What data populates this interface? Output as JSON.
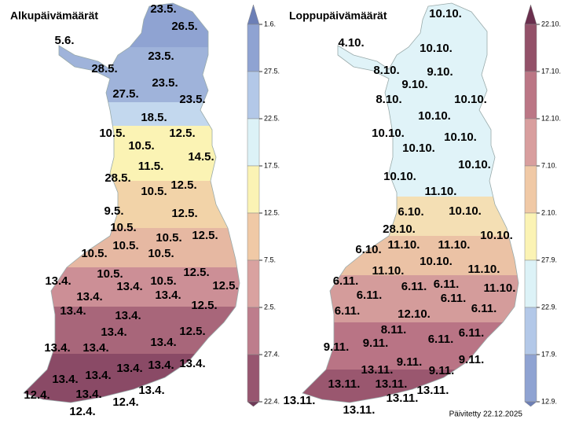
{
  "left_map": {
    "title": "Alkupäivämäärät",
    "labels": [
      "23.5.",
      "26.5.",
      "5.6.",
      "28.5.",
      "23.5.",
      "23.5.",
      "27.5.",
      "23.5.",
      "18.5.",
      "10.5.",
      "12.5.",
      "10.5.",
      "14.5.",
      "11.5.",
      "28.5.",
      "12.5.",
      "10.5.",
      "9.5.",
      "12.5.",
      "10.5.",
      "12.5.",
      "10.5.",
      "10.5.",
      "10.5.",
      "10.5.",
      "12.5.",
      "12.5.",
      "10.5.",
      "13.4.",
      "10.5.",
      "13.4.",
      "13.4.",
      "13.4.",
      "13.4.",
      "12.5.",
      "13.4.",
      "13.4.",
      "12.5.",
      "13.4.",
      "13.4.",
      "13.4.",
      "13.4.",
      "13.4.",
      "13.4.",
      "13.4.",
      "13.4.",
      "12.4.",
      "13.4.",
      "12.4.",
      "13.4.",
      "12.4."
    ],
    "legend": [
      "1.6.",
      "27.5.",
      "22.5.",
      "17.5.",
      "12.5.",
      "7.5.",
      "2.5.",
      "27.4.",
      "22.4."
    ]
  },
  "right_map": {
    "title": "Loppupäivämäärät",
    "labels": [
      "10.10.",
      "4.10.",
      "10.10.",
      "8.10.",
      "9.10.",
      "9.10.",
      "8.10.",
      "10.10.",
      "10.10.",
      "10.10.",
      "10.10.",
      "10.10.",
      "10.10.",
      "10.10.",
      "11.10.",
      "6.10.",
      "10.10.",
      "28.10.",
      "10.10.",
      "6.10.",
      "11.10.",
      "11.10.",
      "10.10.",
      "11.10.",
      "11.10.",
      "6.11.",
      "6.11.",
      "6.11.",
      "11.10.",
      "6.11.",
      "6.11.",
      "6.11.",
      "6.11.",
      "12.10.",
      "8.11.",
      "6.11.",
      "6.11.",
      "9.11.",
      "9.11.",
      "9.11.",
      "9.11.",
      "9.11.",
      "13.11.",
      "13.11.",
      "13.11.",
      "13.11.",
      "13.11.",
      "13.11.",
      "13.11."
    ],
    "legend": [
      "22.10.",
      "17.10.",
      "12.10.",
      "7.10.",
      "2.10.",
      "27.9.",
      "22.9.",
      "17.9.",
      "12.9."
    ]
  },
  "footer": "Päivitetty 22.12.2025"
}
